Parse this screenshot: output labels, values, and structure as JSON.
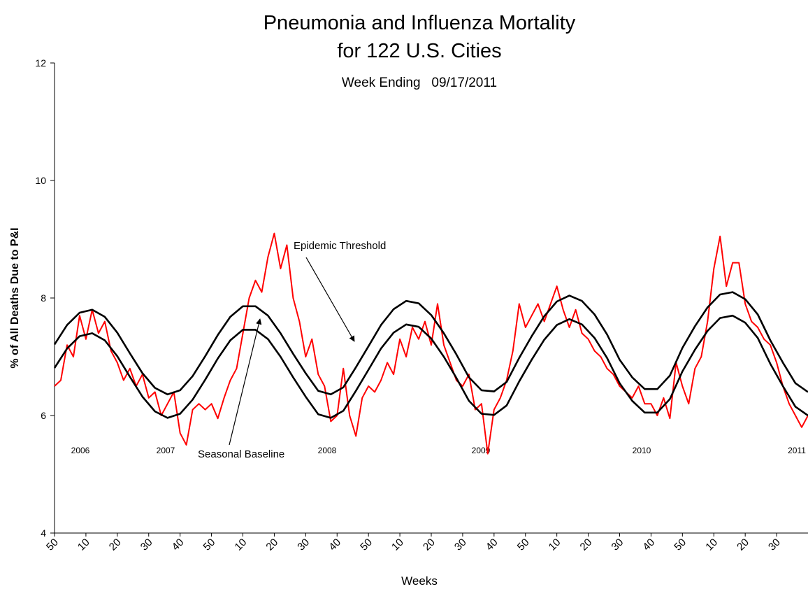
{
  "chart_data": {
    "type": "line",
    "title": [
      "Pneumonia and Influenza Mortality",
      "for 122 U.S. Cities"
    ],
    "subtitle": "Week Ending   09/17/2011",
    "y_label": "% of All Deaths Due to P&I",
    "x_label": "Weeks",
    "annotations": [
      "Epidemic Threshold",
      "Seasonal Baseline"
    ],
    "year_labels": [
      "2006",
      "2007",
      "2008",
      "2009",
      "2010",
      "2011"
    ],
    "xlim": [
      0,
      240
    ],
    "ylim": [
      4,
      12
    ],
    "yticks": [
      4,
      6,
      8,
      10,
      12
    ],
    "xticks": [
      {
        "value": 0,
        "label": "50"
      },
      {
        "value": 10,
        "label": "10"
      },
      {
        "value": 20,
        "label": "20"
      },
      {
        "value": 30,
        "label": "30"
      },
      {
        "value": 40,
        "label": "40"
      },
      {
        "value": 50,
        "label": "50"
      },
      {
        "value": 60,
        "label": "10"
      },
      {
        "value": 70,
        "label": "20"
      },
      {
        "value": 80,
        "label": "30"
      },
      {
        "value": 90,
        "label": "40"
      },
      {
        "value": 100,
        "label": "50"
      },
      {
        "value": 110,
        "label": "10"
      },
      {
        "value": 120,
        "label": "20"
      },
      {
        "value": 130,
        "label": "30"
      },
      {
        "value": 140,
        "label": "40"
      },
      {
        "value": 150,
        "label": "50"
      },
      {
        "value": 160,
        "label": "10"
      },
      {
        "value": 170,
        "label": "20"
      },
      {
        "value": 180,
        "label": "30"
      },
      {
        "value": 190,
        "label": "40"
      },
      {
        "value": 200,
        "label": "50"
      },
      {
        "value": 210,
        "label": "10"
      },
      {
        "value": 220,
        "label": "20"
      },
      {
        "value": 230,
        "label": "30"
      }
    ],
    "series": [
      {
        "color": "#ff0000",
        "x": [
          0,
          2,
          4,
          6,
          8,
          10,
          12,
          14,
          16,
          18,
          20,
          22,
          24,
          26,
          28,
          30,
          32,
          34,
          36,
          38,
          40,
          42,
          44,
          46,
          48,
          50,
          52,
          54,
          56,
          58,
          60,
          62,
          64,
          66,
          68,
          70,
          72,
          74,
          76,
          78,
          80,
          82,
          84,
          86,
          88,
          90,
          92,
          94,
          96,
          98,
          100,
          102,
          104,
          106,
          108,
          110,
          112,
          114,
          116,
          118,
          120,
          122,
          124,
          126,
          128,
          130,
          132,
          134,
          136,
          138,
          140,
          142,
          144,
          146,
          148,
          150,
          152,
          154,
          156,
          158,
          160,
          162,
          164,
          166,
          168,
          170,
          172,
          174,
          176,
          178,
          180,
          182,
          184,
          186,
          188,
          190,
          192,
          194,
          196,
          198,
          200,
          202,
          204,
          206,
          208,
          210,
          212,
          214,
          216,
          218,
          220,
          222,
          224,
          226,
          228,
          230,
          232,
          234,
          236,
          238,
          240
        ],
        "values": [
          6.5,
          6.6,
          7.2,
          7.0,
          7.7,
          7.3,
          7.8,
          7.4,
          7.6,
          7.1,
          6.9,
          6.6,
          6.8,
          6.5,
          6.7,
          6.3,
          6.4,
          6.0,
          6.2,
          6.4,
          5.7,
          5.5,
          6.1,
          6.2,
          6.1,
          6.2,
          5.95,
          6.3,
          6.6,
          6.8,
          7.4,
          8.0,
          8.3,
          8.1,
          8.7,
          9.1,
          8.5,
          8.9,
          8.0,
          7.6,
          7.0,
          7.3,
          6.7,
          6.5,
          5.9,
          6.0,
          6.8,
          6.0,
          5.65,
          6.3,
          6.5,
          6.4,
          6.6,
          6.9,
          6.7,
          7.3,
          7.0,
          7.5,
          7.3,
          7.6,
          7.2,
          7.9,
          7.2,
          6.9,
          6.6,
          6.5,
          6.7,
          6.1,
          6.2,
          5.35,
          6.1,
          6.3,
          6.6,
          7.1,
          7.9,
          7.5,
          7.7,
          7.9,
          7.6,
          7.9,
          8.2,
          7.8,
          7.5,
          7.8,
          7.4,
          7.3,
          7.1,
          7.0,
          6.8,
          6.7,
          6.5,
          6.4,
          6.3,
          6.5,
          6.2,
          6.2,
          6.0,
          6.3,
          5.95,
          6.9,
          6.5,
          6.2,
          6.8,
          7.0,
          7.6,
          8.5,
          9.05,
          8.2,
          8.6,
          8.6,
          7.9,
          7.6,
          7.5,
          7.3,
          7.2,
          6.9,
          6.5,
          6.2,
          6.0,
          5.8,
          6.0
        ]
      },
      {
        "color": "#000000",
        "x": [
          0,
          4,
          8,
          12,
          16,
          20,
          24,
          28,
          32,
          36,
          40,
          44,
          48,
          52,
          56,
          60,
          64,
          68,
          72,
          76,
          80,
          84,
          88,
          92,
          96,
          100,
          104,
          108,
          112,
          116,
          120,
          124,
          128,
          132,
          136,
          140,
          144,
          148,
          152,
          156,
          160,
          164,
          168,
          172,
          176,
          180,
          184,
          188,
          192,
          196,
          200,
          204,
          208,
          212,
          216,
          220,
          224,
          228,
          232,
          236,
          240
        ],
        "values": [
          7.21,
          7.54,
          7.75,
          7.8,
          7.68,
          7.41,
          7.06,
          6.72,
          6.47,
          6.36,
          6.43,
          6.67,
          7.01,
          7.37,
          7.68,
          7.86,
          7.86,
          7.7,
          7.4,
          7.05,
          6.72,
          6.42,
          6.36,
          6.48,
          6.82,
          7.18,
          7.54,
          7.81,
          7.95,
          7.91,
          7.71,
          7.4,
          7.04,
          6.65,
          6.43,
          6.41,
          6.57,
          6.98,
          7.35,
          7.69,
          7.94,
          8.04,
          7.95,
          7.72,
          7.38,
          6.95,
          6.65,
          6.45,
          6.45,
          6.68,
          7.15,
          7.52,
          7.84,
          8.06,
          8.1,
          7.98,
          7.72,
          7.28,
          6.9,
          6.55,
          6.4
        ]
      },
      {
        "color": "#000000",
        "x": [
          0,
          4,
          8,
          12,
          16,
          20,
          24,
          28,
          32,
          36,
          40,
          44,
          48,
          52,
          56,
          60,
          64,
          68,
          72,
          76,
          80,
          84,
          88,
          92,
          96,
          100,
          104,
          108,
          112,
          116,
          120,
          124,
          128,
          132,
          136,
          140,
          144,
          148,
          152,
          156,
          160,
          164,
          168,
          172,
          176,
          180,
          184,
          188,
          192,
          196,
          200,
          204,
          208,
          212,
          216,
          220,
          224,
          228,
          232,
          236,
          240
        ],
        "values": [
          6.81,
          7.14,
          7.35,
          7.4,
          7.28,
          7.01,
          6.66,
          6.32,
          6.07,
          5.96,
          6.03,
          6.27,
          6.61,
          6.97,
          7.28,
          7.46,
          7.46,
          7.3,
          7.0,
          6.65,
          6.32,
          6.02,
          5.96,
          6.08,
          6.42,
          6.78,
          7.14,
          7.41,
          7.55,
          7.51,
          7.31,
          7.0,
          6.64,
          6.25,
          6.03,
          6.01,
          6.17,
          6.58,
          6.95,
          7.29,
          7.54,
          7.64,
          7.55,
          7.32,
          6.98,
          6.55,
          6.25,
          6.05,
          6.05,
          6.28,
          6.75,
          7.12,
          7.44,
          7.66,
          7.7,
          7.58,
          7.32,
          6.88,
          6.5,
          6.15,
          6.0
        ]
      }
    ]
  }
}
